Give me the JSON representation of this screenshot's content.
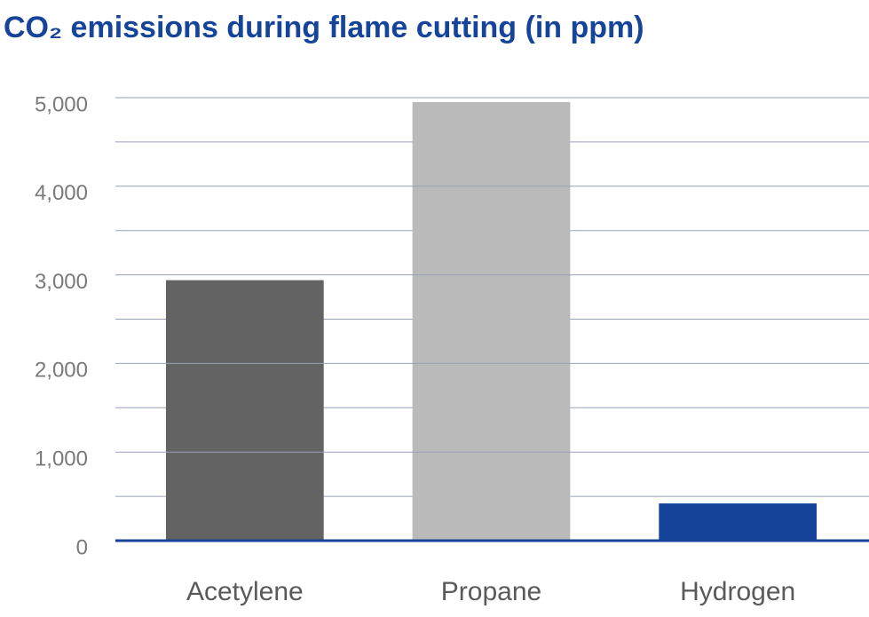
{
  "chart_data": {
    "type": "bar",
    "title": "CO₂ emissions during flame cutting (in ppm)",
    "categories": [
      "Acetylene",
      "Propane",
      "Hydrogen"
    ],
    "values": [
      2940,
      4950,
      420
    ],
    "colors": [
      "#636363",
      "#bababa",
      "#15449a"
    ],
    "ylim": [
      0,
      5000
    ],
    "yticks": [
      0,
      {
        "value": 1000,
        "label": "1,000"
      },
      {
        "value": 2000,
        "label": "2,000"
      },
      {
        "value": 3000,
        "label": "3,000"
      },
      {
        "value": 4000,
        "label": "4,000"
      },
      {
        "value": 5000,
        "label": "5,000"
      }
    ],
    "minor_yticks": [
      500,
      1500,
      2500,
      3500,
      4500
    ],
    "grid": true
  }
}
